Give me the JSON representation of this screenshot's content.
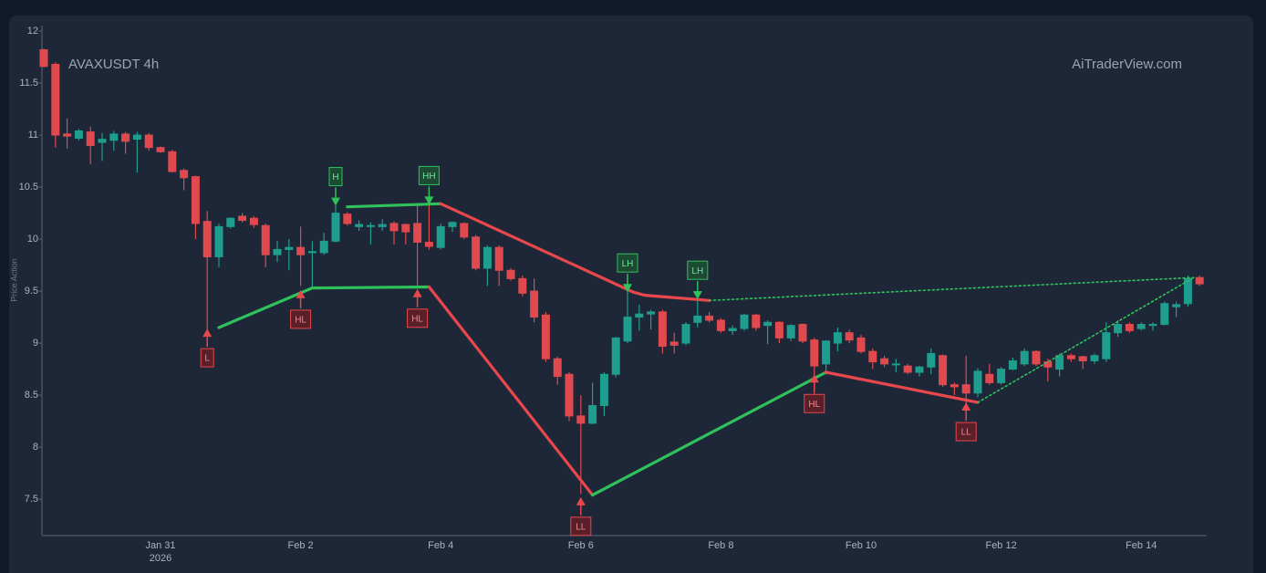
{
  "chart_data": {
    "type": "candlestick",
    "title": "AVAXUSDT 4h",
    "watermark": "AiTraderView.com",
    "y_label": "Price Action",
    "up_color": "#1f9e8f",
    "down_color": "#e04a4f",
    "grid": false,
    "ylim": [
      7.15,
      12.03
    ],
    "yticks": [
      7.5,
      8,
      8.5,
      9,
      9.5,
      10,
      10.5,
      11,
      11.5,
      12
    ],
    "x_sublabel": "2026",
    "categories": [
      null,
      null,
      null,
      null,
      null,
      null,
      null,
      null,
      null,
      null,
      "Jan 31",
      null,
      null,
      null,
      null,
      null,
      null,
      null,
      null,
      null,
      null,
      null,
      "Feb 2",
      null,
      null,
      null,
      null,
      null,
      null,
      null,
      null,
      null,
      null,
      null,
      "Feb 4",
      null,
      null,
      null,
      null,
      null,
      null,
      null,
      null,
      null,
      null,
      null,
      "Feb 6",
      null,
      null,
      null,
      null,
      null,
      null,
      null,
      null,
      null,
      null,
      null,
      "Feb 8",
      null,
      null,
      null,
      null,
      null,
      null,
      null,
      null,
      null,
      null,
      null,
      "Feb 10",
      null,
      null,
      null,
      null,
      null,
      null,
      null,
      null,
      null,
      null,
      null,
      "Feb 12",
      null,
      null,
      null,
      null,
      null,
      null,
      null,
      null,
      null,
      null,
      null,
      "Feb 14",
      null,
      null,
      null,
      null,
      null
    ],
    "open": [
      11.82,
      11.68,
      11.01,
      10.97,
      11.03,
      10.93,
      10.95,
      11.01,
      10.96,
      11.0,
      10.88,
      10.84,
      10.66,
      10.6,
      10.17,
      9.83,
      10.12,
      10.22,
      10.2,
      10.13,
      9.85,
      9.9,
      9.92,
      9.87,
      9.87,
      9.98,
      10.24,
      10.12,
      10.13,
      10.12,
      10.15,
      10.14,
      10.15,
      9.97,
      9.92,
      10.12,
      10.15,
      10.02,
      9.72,
      9.92,
      9.7,
      9.62,
      9.5,
      9.27,
      8.85,
      8.7,
      8.3,
      8.23,
      8.4,
      8.7,
      9.02,
      9.25,
      9.28,
      9.3,
      9.01,
      9.0,
      9.2,
      9.26,
      9.22,
      9.12,
      9.14,
      9.27,
      9.17,
      9.2,
      9.05,
      9.18,
      9.03,
      8.8,
      9.0,
      9.1,
      9.05,
      8.92,
      8.85,
      8.8,
      8.78,
      8.72,
      8.77,
      8.88,
      8.6,
      8.6,
      8.52,
      8.7,
      8.62,
      8.75,
      8.8,
      8.92,
      8.82,
      8.75,
      8.88,
      8.87,
      8.83,
      8.85,
      9.1,
      9.18,
      9.14,
      9.17,
      9.18,
      9.35,
      9.38,
      9.63
    ],
    "high": [
      11.83,
      11.7,
      11.16,
      11.06,
      11.08,
      11.02,
      11.04,
      11.03,
      11.03,
      11.02,
      10.89,
      10.86,
      10.68,
      10.61,
      10.27,
      10.15,
      10.21,
      10.25,
      10.22,
      10.15,
      9.98,
      10.0,
      10.12,
      9.98,
      10.06,
      10.33,
      10.26,
      10.18,
      10.16,
      10.19,
      10.17,
      10.15,
      10.32,
      10.33,
      10.15,
      10.17,
      10.16,
      10.04,
      9.94,
      9.94,
      9.72,
      9.65,
      9.62,
      9.3,
      8.87,
      8.72,
      8.5,
      8.62,
      8.72,
      9.06,
      9.5,
      9.37,
      9.32,
      9.32,
      9.1,
      9.2,
      9.42,
      9.3,
      9.24,
      9.17,
      9.28,
      9.28,
      9.22,
      9.21,
      9.18,
      9.19,
      9.05,
      9.03,
      9.15,
      9.13,
      9.08,
      8.95,
      8.88,
      8.85,
      8.8,
      8.78,
      8.95,
      8.89,
      8.62,
      8.88,
      8.76,
      8.8,
      8.77,
      8.86,
      8.95,
      8.93,
      8.85,
      8.9,
      8.9,
      8.88,
      8.9,
      9.2,
      9.22,
      9.2,
      9.2,
      9.2,
      9.4,
      9.4,
      9.65,
      9.65
    ],
    "low": [
      11.65,
      10.88,
      10.87,
      10.95,
      10.72,
      10.75,
      10.85,
      10.82,
      10.64,
      10.85,
      10.83,
      10.64,
      10.47,
      10.0,
      9.12,
      9.73,
      10.1,
      10.16,
      10.11,
      9.73,
      9.78,
      9.7,
      9.55,
      9.53,
      9.85,
      9.97,
      10.13,
      10.08,
      9.95,
      10.08,
      9.95,
      9.95,
      9.52,
      9.9,
      9.9,
      10.07,
      10.0,
      9.7,
      9.55,
      9.55,
      9.6,
      9.45,
      9.2,
      8.82,
      8.6,
      8.25,
      7.55,
      8.22,
      8.3,
      8.67,
      9.0,
      9.12,
      9.13,
      8.9,
      8.9,
      8.98,
      9.15,
      9.2,
      9.1,
      9.08,
      9.12,
      9.12,
      8.99,
      9.0,
      9.02,
      9.0,
      8.5,
      8.7,
      8.92,
      9.0,
      8.9,
      8.75,
      8.77,
      8.72,
      8.7,
      8.68,
      8.7,
      8.58,
      8.5,
      8.42,
      8.48,
      8.6,
      8.6,
      8.74,
      8.78,
      8.78,
      8.63,
      8.68,
      8.82,
      8.75,
      8.8,
      8.82,
      9.06,
      9.1,
      9.12,
      9.12,
      9.17,
      9.25,
      9.35,
      9.55
    ],
    "close": [
      11.66,
      11.0,
      10.99,
      11.04,
      10.9,
      10.96,
      11.01,
      10.94,
      11.0,
      10.88,
      10.84,
      10.65,
      10.59,
      10.15,
      9.83,
      10.12,
      10.2,
      10.18,
      10.14,
      9.85,
      9.9,
      9.92,
      9.85,
      9.88,
      9.98,
      10.25,
      10.15,
      10.14,
      10.13,
      10.14,
      10.08,
      10.07,
      9.97,
      9.93,
      10.12,
      10.16,
      10.02,
      9.72,
      9.92,
      9.7,
      9.62,
      9.48,
      9.25,
      8.85,
      8.68,
      8.3,
      8.23,
      8.4,
      8.7,
      9.05,
      9.25,
      9.28,
      9.3,
      8.97,
      8.98,
      9.18,
      9.26,
      9.22,
      9.12,
      9.14,
      9.27,
      9.15,
      9.2,
      9.05,
      9.17,
      9.02,
      8.78,
      9.02,
      9.1,
      9.03,
      8.92,
      8.82,
      8.8,
      8.8,
      8.72,
      8.77,
      8.9,
      8.6,
      8.58,
      8.52,
      8.73,
      8.62,
      8.75,
      8.83,
      8.92,
      8.8,
      8.77,
      8.88,
      8.85,
      8.83,
      8.88,
      9.1,
      9.18,
      9.12,
      9.18,
      9.18,
      9.38,
      9.37,
      9.62,
      9.57
    ],
    "lines": [
      {
        "color": "#2fc15a",
        "dashed": false,
        "x": [
          15,
          23,
          33
        ],
        "y": [
          9.15,
          9.53,
          9.54
        ]
      },
      {
        "color": "#2fc15a",
        "dashed": false,
        "x": [
          26,
          34
        ],
        "y": [
          10.31,
          10.34
        ]
      },
      {
        "color": "#e8474c",
        "dashed": false,
        "x": [
          34,
          50.5,
          51.5,
          57
        ],
        "y": [
          10.34,
          9.49,
          9.46,
          9.41
        ]
      },
      {
        "color": "#2fc15a",
        "dashed": true,
        "x": [
          57,
          98.5
        ],
        "y": [
          9.41,
          9.63
        ]
      },
      {
        "color": "#e8474c",
        "dashed": false,
        "x": [
          33,
          47
        ],
        "y": [
          9.54,
          7.54
        ]
      },
      {
        "color": "#2fc15a",
        "dashed": false,
        "x": [
          47,
          67
        ],
        "y": [
          7.54,
          8.72
        ]
      },
      {
        "color": "#e8474c",
        "dashed": false,
        "x": [
          67,
          80
        ],
        "y": [
          8.72,
          8.43
        ]
      },
      {
        "color": "#2fc15a",
        "dashed": true,
        "x": [
          80,
          98.5
        ],
        "y": [
          8.43,
          9.63
        ]
      }
    ],
    "pivots": [
      {
        "label": "L",
        "x": 14,
        "y": 9.14,
        "position": "below",
        "color": "#e8474c"
      },
      {
        "label": "HL",
        "x": 22,
        "y": 9.51,
        "position": "below",
        "color": "#e8474c"
      },
      {
        "label": "HL",
        "x": 32,
        "y": 9.52,
        "position": "below",
        "color": "#e8474c"
      },
      {
        "label": "LL",
        "x": 46,
        "y": 7.52,
        "position": "below",
        "color": "#e8474c"
      },
      {
        "label": "HL",
        "x": 66,
        "y": 8.7,
        "position": "below",
        "color": "#e8474c"
      },
      {
        "label": "LL",
        "x": 79,
        "y": 8.43,
        "position": "below",
        "color": "#e8474c"
      },
      {
        "label": "H",
        "x": 25,
        "y": 10.32,
        "position": "above",
        "color": "#2fc15a"
      },
      {
        "label": "HH",
        "x": 33,
        "y": 10.33,
        "position": "above",
        "color": "#2fc15a"
      },
      {
        "label": "LH",
        "x": 50,
        "y": 9.49,
        "position": "above",
        "color": "#2fc15a"
      },
      {
        "label": "LH",
        "x": 56,
        "y": 9.42,
        "position": "above",
        "color": "#2fc15a"
      }
    ]
  }
}
